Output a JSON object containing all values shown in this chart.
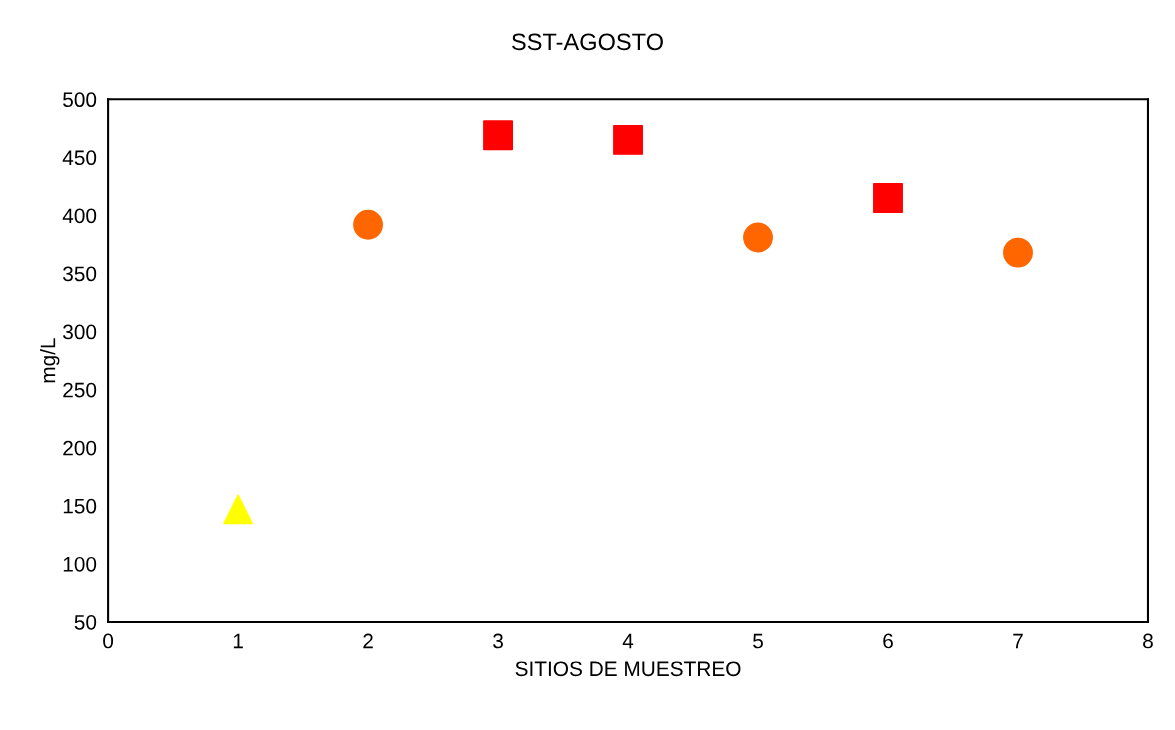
{
  "chart_data": {
    "type": "scatter",
    "title": "SST-AGOSTO",
    "xlabel": "SITIOS DE MUESTREO",
    "ylabel": "mg/L",
    "series": [
      {
        "color": "#ffff00",
        "marker": "triangle",
        "x": [
          1
        ],
        "values": [
          147
        ]
      },
      {
        "color": "#ff6600",
        "marker": "circle",
        "x": [
          2,
          5,
          7
        ],
        "values": [
          392,
          381,
          368
        ]
      },
      {
        "color": "#ff0000",
        "marker": "square",
        "x": [
          3,
          4,
          6
        ],
        "values": [
          469,
          465,
          415
        ]
      }
    ],
    "xlim": [
      0,
      8
    ],
    "xticks": [
      0,
      1,
      2,
      3,
      4,
      5,
      6,
      7,
      8
    ],
    "ylim": [
      50,
      500
    ],
    "yticks": [
      50,
      100,
      150,
      200,
      250,
      300,
      350,
      400,
      450,
      500
    ],
    "grid": false,
    "legend": false
  }
}
